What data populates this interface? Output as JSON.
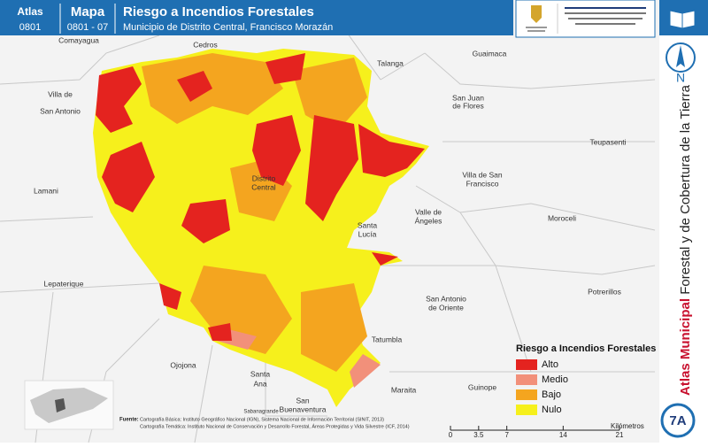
{
  "header": {
    "atlas_label": "Atlas",
    "atlas_code": "0801",
    "map_label": "Mapa",
    "map_code": "0801 - 07",
    "title": "Riesgo a Incendios Forestales",
    "subtitle": "Municipio de Distrito Central, Francisco Morazán"
  },
  "side_title": {
    "bold": "Atlas Municipal",
    "rest": "Forestal y de Cobertura de la Tierra"
  },
  "north": "N",
  "badge": "7A",
  "places": [
    "Comayagua",
    "Cedros",
    "Talanga",
    "Guaimaca",
    "Villa de",
    "San Antonio",
    "San Juan",
    "de Flores",
    "Teupasenti",
    "Lamani",
    "Distrito",
    "Central",
    "Villa de San",
    "Francisco",
    "Santa",
    "Lucía",
    "Valle de",
    "Ángeles",
    "Moroceli",
    "Lepaterique",
    "San Antonio",
    "de Oriente",
    "Potrerillos",
    "Tatumbla",
    "Ojojona",
    "Santa",
    "Ana",
    "San",
    "Buenaventura",
    "Sabanagrande",
    "Maraita",
    "Guinope"
  ],
  "legend": {
    "title": "Riesgo a Incendios Forestales",
    "items": [
      {
        "label": "Alto",
        "color": "#e4231f"
      },
      {
        "label": "Medio",
        "color": "#f2907a"
      },
      {
        "label": "Bajo",
        "color": "#f4a51f"
      },
      {
        "label": "Nulo",
        "color": "#f6f01c"
      }
    ]
  },
  "scale": {
    "ticks": [
      0,
      3.5,
      7,
      14,
      21
    ],
    "unit": "Kilómetros"
  },
  "source": {
    "label": "Fuente:",
    "lines": [
      "Cartografía Básica: Instituto Geográfico Nacional (IGN), Sistema Nacional de Información Territorial (SINIT, 2013)",
      "Cartografía Temática: Instituto Nacional de Conservación y Desarrollo Forestal, Áreas Protegidas y Vida Silvestre (ICF, 2014)"
    ]
  }
}
